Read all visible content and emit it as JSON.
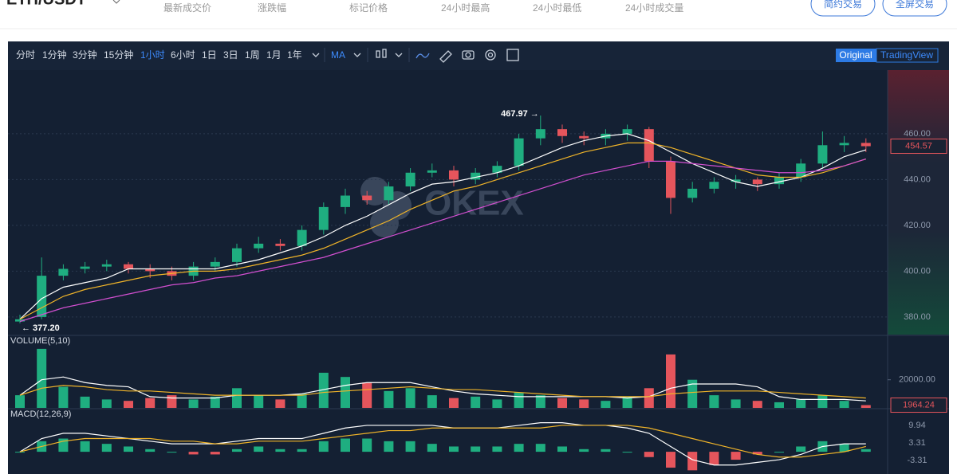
{
  "header": {
    "pair": "ETH/USDT",
    "labels": [
      "最新成交价",
      "涨跌幅",
      "标记价格",
      "24小时最高",
      "24小时最低",
      "24小时成交量"
    ],
    "buttons": [
      "简约交易",
      "全屏交易"
    ]
  },
  "toolbar": {
    "intervals": [
      "分时",
      "1分钟",
      "3分钟",
      "15分钟",
      "1小时",
      "6小时",
      "1日",
      "3日",
      "1周",
      "1月",
      "1年"
    ],
    "active_index": 4,
    "indicator": "MA",
    "views": [
      "Original",
      "TradingView"
    ],
    "watermark": "OKEX"
  },
  "chart_data": [
    {
      "type": "candlestick",
      "up_color": "#1fae80",
      "down_color": "#e5555c",
      "open": [
        378,
        380,
        398,
        401,
        402,
        403,
        401,
        400,
        398,
        402,
        404,
        410,
        412,
        411,
        418,
        428,
        433,
        431,
        437,
        443,
        444,
        440,
        443,
        446,
        458,
        462,
        459,
        458,
        460,
        462,
        448,
        432,
        436,
        439,
        440,
        438,
        441,
        447,
        455,
        456
      ],
      "high": [
        381,
        406,
        403,
        404,
        405,
        404,
        403,
        402,
        404,
        406,
        412,
        415,
        414,
        420,
        430,
        436,
        435,
        439,
        445,
        447,
        446,
        445,
        448,
        460,
        467.97,
        464,
        461,
        462,
        464,
        463,
        450,
        439,
        441,
        442,
        441,
        443,
        449,
        461,
        459,
        458
      ],
      "low": [
        377.2,
        379,
        396,
        399,
        400,
        399,
        397,
        396,
        396,
        400,
        402,
        408,
        409,
        409,
        416,
        425,
        429,
        429,
        435,
        441,
        437,
        438,
        441,
        444,
        455,
        456,
        455,
        455,
        457,
        445,
        425,
        430,
        434,
        436,
        435,
        436,
        439,
        445,
        452,
        452
      ],
      "close": [
        379,
        398,
        401,
        402,
        403,
        401,
        400,
        398,
        402,
        404,
        410,
        412,
        411,
        418,
        428,
        433,
        431,
        437,
        443,
        444,
        440,
        443,
        446,
        458,
        462,
        459,
        458,
        460,
        462,
        448,
        432,
        436,
        439,
        440,
        438,
        441,
        447,
        455,
        456,
        454.57
      ],
      "lines": [
        {
          "color": "#ffffff",
          "values": [
            379,
            388,
            393,
            395,
            397,
            401,
            401,
            401,
            401,
            401,
            403,
            405,
            408,
            411,
            415,
            420,
            424,
            429,
            434,
            438,
            439,
            441,
            443,
            446,
            450,
            454,
            457,
            459,
            460,
            457,
            452,
            447,
            443,
            439,
            437,
            439,
            441,
            445,
            450,
            453
          ]
        },
        {
          "color": "#f0b429",
          "values": [
            379,
            384,
            389,
            392,
            394,
            396,
            398,
            399,
            400,
            400,
            401,
            403,
            405,
            407,
            410,
            414,
            418,
            422,
            427,
            431,
            435,
            437,
            440,
            443,
            446,
            449,
            452,
            454,
            456,
            456,
            454,
            451,
            448,
            445,
            442,
            441,
            441,
            443,
            446,
            449
          ]
        },
        {
          "color": "#d24fd0",
          "values": [
            378,
            381,
            384,
            386,
            388,
            390,
            392,
            394,
            395,
            397,
            398,
            400,
            402,
            404,
            406,
            409,
            412,
            415,
            418,
            421,
            424,
            427,
            430,
            433,
            436,
            439,
            442,
            444,
            446,
            448,
            448,
            447,
            446,
            445,
            444,
            443,
            443,
            444,
            446,
            449
          ]
        }
      ],
      "ylim": [
        372.3,
        487.8
      ],
      "yticks": [
        {
          "value": 380,
          "label": "380.00"
        },
        {
          "value": 400,
          "label": "400.00"
        },
        {
          "value": 420,
          "label": "420.00"
        },
        {
          "value": 440,
          "label": "440.00"
        },
        {
          "value": 460,
          "label": "460.00"
        }
      ],
      "annotations": [
        {
          "index": 24,
          "text": "467.97 →"
        },
        {
          "index": 0,
          "text": "← 377.20"
        }
      ],
      "last_label": "454.57",
      "grid": true
    },
    {
      "type": "volume",
      "title": "VOLUME(5,10)",
      "values": [
        9000,
        42000,
        15000,
        8000,
        6000,
        5000,
        7000,
        9000,
        6000,
        8000,
        14000,
        9000,
        6000,
        10000,
        25000,
        22000,
        18000,
        12000,
        14000,
        9000,
        7000,
        8000,
        6000,
        11000,
        9000,
        7000,
        6000,
        5000,
        8000,
        14000,
        38000,
        20000,
        9000,
        6000,
        5000,
        4000,
        6000,
        9000,
        5000,
        1964.24
      ],
      "lines": [
        {
          "color": "#ffffff",
          "values": [
            9000,
            20000,
            22000,
            18000,
            16000,
            15000,
            8000,
            7000,
            7000,
            7000,
            9000,
            9000,
            9000,
            10000,
            13000,
            16000,
            18000,
            18000,
            18000,
            15000,
            12000,
            10000,
            9000,
            8000,
            8000,
            8000,
            8000,
            8000,
            7000,
            8000,
            14000,
            17000,
            17000,
            17000,
            15000,
            8000,
            6000,
            6000,
            6000,
            5000
          ]
        },
        {
          "color": "#f0b429",
          "values": [
            9000,
            14000,
            16000,
            15000,
            13000,
            12000,
            12000,
            11000,
            10000,
            9000,
            9000,
            9000,
            9000,
            9000,
            11000,
            12000,
            13000,
            14000,
            15000,
            14000,
            13000,
            13000,
            12000,
            11000,
            10000,
            9000,
            8000,
            8000,
            8000,
            8000,
            10000,
            11000,
            12000,
            12000,
            12000,
            11000,
            10000,
            9000,
            8000,
            7000
          ]
        }
      ],
      "ylim": [
        0,
        47600
      ],
      "yticks": [
        {
          "value": 20000,
          "label": "20000.00"
        }
      ],
      "last_label": "1964.24"
    },
    {
      "type": "macd",
      "title": "MACD(12,26,9)",
      "values": [
        0,
        4,
        5,
        4,
        3,
        2,
        1,
        0,
        -1,
        -1,
        1,
        2,
        1,
        1,
        4,
        5,
        5,
        4,
        4,
        3,
        2,
        2,
        2,
        3,
        3,
        2,
        1,
        1,
        0,
        -2,
        -6,
        -7,
        -5,
        -3,
        -1,
        0,
        2,
        4,
        3,
        1
      ],
      "lines": [
        {
          "color": "#ffffff",
          "values": [
            0,
            5,
            7,
            7,
            6,
            5,
            4,
            3,
            3,
            3,
            4,
            5,
            5,
            5,
            7,
            9,
            10,
            10,
            10,
            10,
            9,
            9,
            9,
            10,
            11,
            11,
            10,
            10,
            9,
            7,
            2,
            -3,
            -5,
            -5,
            -4,
            -3,
            -1,
            2,
            3,
            3
          ]
        },
        {
          "color": "#f0b429",
          "values": [
            0,
            2,
            4,
            5,
            5,
            5,
            5,
            4,
            4,
            3,
            3,
            4,
            4,
            4,
            5,
            6,
            7,
            8,
            8,
            9,
            9,
            9,
            9,
            9,
            9,
            10,
            10,
            10,
            10,
            9,
            7,
            5,
            3,
            1,
            -1,
            -2,
            -2,
            -1,
            0,
            2
          ]
        }
      ],
      "ylim": [
        -8.4,
        16
      ],
      "yticks": [
        9.94,
        3.31,
        -3.31
      ]
    }
  ]
}
